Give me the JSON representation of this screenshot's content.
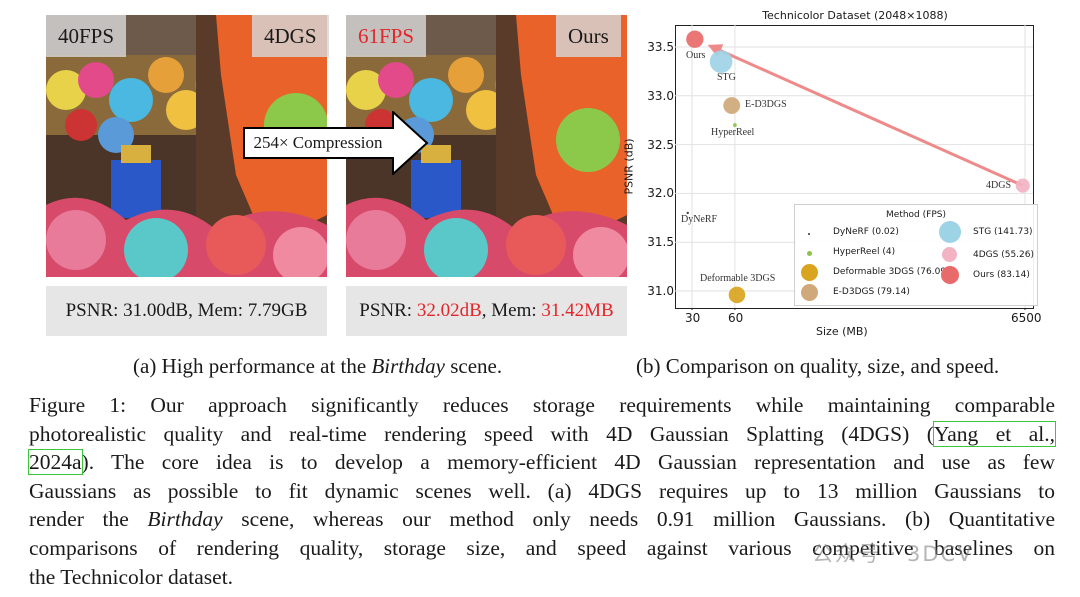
{
  "panel_left": {
    "fps": "40FPS",
    "method": "4DGS",
    "caption_text": "PSNR: 31.00dB, Mem: 7.79GB"
  },
  "panel_right": {
    "fps": "61FPS",
    "method": "Ours",
    "caption_prefix": "PSNR: ",
    "psnr": "32.02dB",
    "caption_mid": ", Mem: ",
    "mem": "31.42MB"
  },
  "arrow_label": "254× Compression",
  "chart_data": {
    "type": "scatter",
    "title": "Technicolor Dataset (2048×1088)",
    "xlabel": "Size (MB)",
    "ylabel": "PSNR (dB)",
    "x_ticks": [
      "30",
      "60",
      "6500"
    ],
    "y_ticks": [
      "31.0",
      "31.5",
      "32.0",
      "32.5",
      "33.0",
      "33.5"
    ],
    "ylim": [
      30.9,
      33.65
    ],
    "grid": true,
    "legend_title": "Method (FPS)",
    "legend_position": "bottom-right",
    "points": [
      {
        "name": "DyNeRF",
        "legend": "DyNeRF (0.02)",
        "size_mb": 28,
        "psnr": 31.8,
        "fps": 0.02,
        "color": "#333333"
      },
      {
        "name": "HyperReel",
        "legend": "HyperReel (4)",
        "size_mb": 60,
        "psnr": 32.7,
        "fps": 4,
        "color": "#8bc34a"
      },
      {
        "name": "Deformable 3DGS",
        "legend": "Deformable 3DGS (76.09)",
        "size_mb": 62,
        "psnr": 30.96,
        "fps": 76.09,
        "color": "#d9a520"
      },
      {
        "name": "E-D3DGS",
        "legend": "E-D3DGS (79.14)",
        "size_mb": 57,
        "psnr": 32.9,
        "fps": 79.14,
        "color": "#cfa97a"
      },
      {
        "name": "STG",
        "legend": "STG (141.73)",
        "size_mb": 48,
        "psnr": 33.35,
        "fps": 141.73,
        "color": "#9ed3e6"
      },
      {
        "name": "4DGS",
        "legend": "4DGS (55.26)",
        "size_mb": 6270,
        "psnr": 32.08,
        "fps": 55.26,
        "color": "#f2b3c3"
      },
      {
        "name": "Ours",
        "legend": "Ours (83.14)",
        "size_mb": 31.42,
        "psnr": 33.58,
        "fps": 83.14,
        "color": "#e86a6a"
      }
    ],
    "arrow_from": "4DGS",
    "arrow_to": "Ours",
    "arrow_color": "#ef8a8a"
  },
  "subcaption_a": {
    "pre": "(a) High performance at the ",
    "em": "Birthday",
    "post": " scene."
  },
  "subcaption_b": "(b) Comparison on quality, size, and speed.",
  "figure_caption": {
    "line1": "Figure 1: Our approach significantly reduces storage requirements while maintaining comparable",
    "line2_pre": "photorealistic quality and real-time rendering speed with 4D Gaussian Splatting (4DGS) (",
    "cite_part1": "Yang et al.,",
    "cite_part2": "2024a",
    "line3_post": "). The core idea is to develop a memory-efficient 4D Gaussian representation and use as few",
    "line4": "Gaussians as possible to fit dynamic scenes well. (a) 4DGS requires up to 13 million Gaussians to",
    "line5_pre": "render the ",
    "line5_em": "Birthday",
    "line5_post": " scene, whereas our method only needs 0.91 million Gaussians. (b) Quantitative",
    "line6": "comparisons of rendering quality, storage size, and speed against various competitive baselines on",
    "line7": "the Technicolor dataset."
  },
  "watermark": "公众号 · 3DCV",
  "colors": {
    "highlight_red": "#e3262b",
    "cite_box": "#3ec53e",
    "caption_box_bg": "#e6e6e6"
  }
}
